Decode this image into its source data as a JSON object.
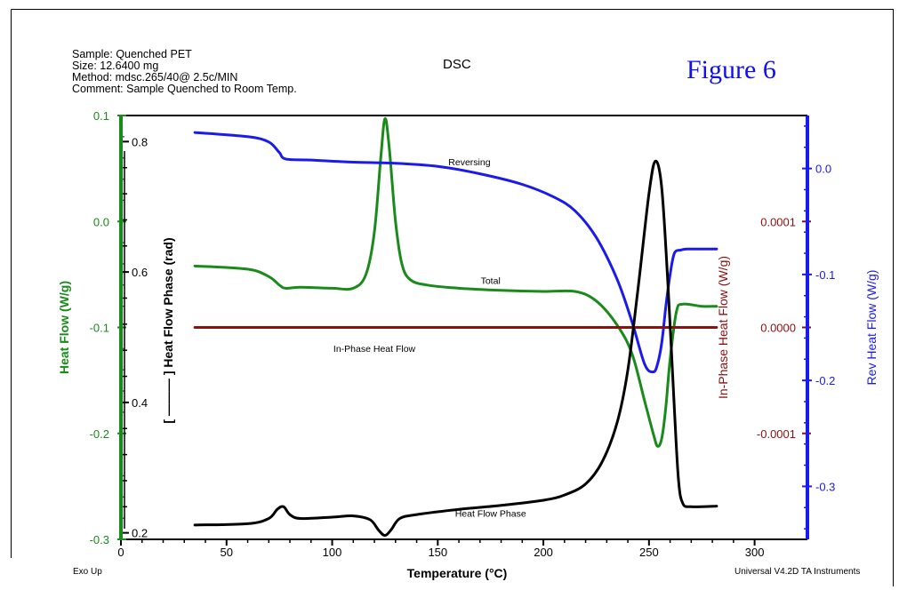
{
  "header": {
    "sample": "Sample: Quenched PET",
    "size": "Size:  12.6400 mg",
    "method": "Method: mdsc.265/40@ 2.5c/MIN",
    "comment": "Comment: Sample Quenched to Room Temp.",
    "title": "DSC",
    "figure": "Figure 6"
  },
  "footer": {
    "left": "Exo Up",
    "right": "Universal V4.2D TA Instruments"
  },
  "colors": {
    "total": "#1a8a1a",
    "reversing": "#1a1aee",
    "phase": "#000000",
    "inphase": "#8b1010",
    "figure": "#1010ee"
  },
  "chart_data": {
    "type": "line",
    "title": "DSC",
    "xlabel": "Temperature (°C)",
    "xlim": [
      0,
      325
    ],
    "xticks": [
      0,
      50,
      100,
      150,
      200,
      250,
      300
    ],
    "axes": {
      "heat_flow": {
        "label": "Heat Flow (W/g)",
        "color": "#1a8a1a",
        "side": "left",
        "lim": [
          -0.3,
          0.1
        ],
        "ticks": [
          "0.1",
          "0.0",
          "-0.1",
          "-0.2",
          "-0.3"
        ],
        "tick_values": [
          0.1,
          0.0,
          -0.1,
          -0.2,
          -0.3
        ]
      },
      "phase": {
        "label": "[ ——— ] Heat Flow Phase (rad)",
        "color": "#000000",
        "side": "left-inner",
        "lim": [
          0.19,
          0.84
        ],
        "ticks": [
          "0.8",
          "0.6",
          "0.4",
          "0.2"
        ],
        "tick_values": [
          0.8,
          0.6,
          0.4,
          0.2
        ]
      },
      "inphase": {
        "label": "In-Phase Heat Flow (W/g)",
        "color": "#8b1010",
        "side": "right-inner",
        "lim": [
          -0.0002,
          0.0002
        ],
        "ticks": [
          "0.0001",
          "0.0000",
          "-0.0001"
        ],
        "tick_values": [
          0.0001,
          0.0,
          -0.0001
        ]
      },
      "rev": {
        "label": "Rev Heat Flow (W/g)",
        "color": "#1a1aee",
        "side": "right",
        "lim": [
          -0.35,
          0.05
        ],
        "ticks": [
          "0.0",
          "-0.1",
          "-0.2",
          "-0.3"
        ],
        "tick_values": [
          0.0,
          -0.1,
          -0.2,
          -0.3
        ]
      }
    },
    "series": [
      {
        "name": "Total",
        "axis": "heat_flow",
        "color": "#1a8a1a",
        "x": [
          35,
          60,
          70,
          75,
          78,
          85,
          100,
          110,
          116,
          120,
          123,
          125,
          127,
          130,
          133,
          137,
          145,
          160,
          180,
          200,
          215,
          225,
          235,
          242,
          248,
          252,
          254,
          256,
          258,
          260,
          263,
          266,
          275,
          282
        ],
        "y": [
          -0.042,
          -0.045,
          -0.052,
          -0.06,
          -0.063,
          -0.062,
          -0.063,
          -0.063,
          -0.05,
          -0.01,
          0.06,
          0.097,
          0.07,
          0.0,
          -0.04,
          -0.055,
          -0.06,
          -0.063,
          -0.065,
          -0.066,
          -0.066,
          -0.075,
          -0.098,
          -0.125,
          -0.17,
          -0.2,
          -0.212,
          -0.205,
          -0.175,
          -0.13,
          -0.085,
          -0.078,
          -0.08,
          -0.08
        ]
      },
      {
        "name": "Reversing",
        "axis": "rev",
        "color": "#1a1aee",
        "x": [
          35,
          60,
          70,
          75,
          78,
          90,
          110,
          130,
          150,
          170,
          190,
          205,
          215,
          225,
          235,
          242,
          248,
          252,
          254,
          256,
          258,
          260,
          262,
          265,
          268,
          275,
          282
        ],
        "y": [
          0.034,
          0.03,
          0.025,
          0.015,
          0.009,
          0.008,
          0.006,
          0.005,
          0.002,
          -0.005,
          -0.015,
          -0.027,
          -0.04,
          -0.065,
          -0.105,
          -0.145,
          -0.185,
          -0.192,
          -0.185,
          -0.165,
          -0.13,
          -0.1,
          -0.08,
          -0.077,
          -0.076,
          -0.076,
          -0.076
        ]
      },
      {
        "name": "In-Phase Heat Flow",
        "axis": "inphase",
        "color": "#8b1010",
        "x": [
          35,
          282
        ],
        "y": [
          0.0,
          0.0
        ]
      },
      {
        "name": "Heat Flow Phase",
        "axis": "phase",
        "color": "#000000",
        "x": [
          35,
          60,
          70,
          74,
          77,
          80,
          85,
          100,
          110,
          118,
          122,
          125,
          128,
          132,
          140,
          160,
          180,
          200,
          210,
          220,
          228,
          235,
          240,
          245,
          250,
          253,
          256,
          259,
          262,
          264,
          266,
          270,
          282
        ],
        "y": [
          0.212,
          0.214,
          0.222,
          0.236,
          0.24,
          0.228,
          0.222,
          0.224,
          0.226,
          0.22,
          0.204,
          0.196,
          0.205,
          0.222,
          0.228,
          0.236,
          0.242,
          0.25,
          0.258,
          0.275,
          0.31,
          0.37,
          0.45,
          0.58,
          0.72,
          0.77,
          0.73,
          0.58,
          0.39,
          0.28,
          0.245,
          0.24,
          0.241
        ]
      }
    ],
    "annotations": [
      {
        "text": "Reversing",
        "x": 165,
        "y": 0.003,
        "axis": "rev"
      },
      {
        "text": "Total",
        "x": 175,
        "y": -0.059,
        "axis": "heat_flow"
      },
      {
        "text": "In-Phase Heat Flow",
        "x": 120,
        "y": -2.3e-05,
        "axis": "inphase"
      },
      {
        "text": "Heat Flow Phase",
        "x": 175,
        "y": 0.225,
        "axis": "phase"
      }
    ]
  }
}
